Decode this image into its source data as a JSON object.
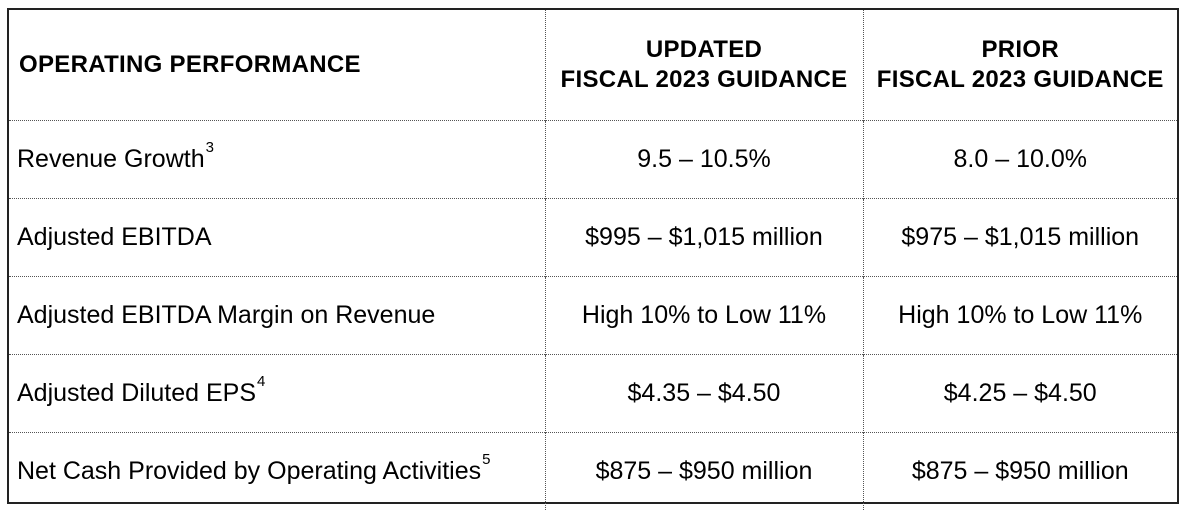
{
  "header": {
    "col1": "OPERATING PERFORMANCE",
    "col2_line1": "UPDATED",
    "col2_line2": "FISCAL 2023 GUIDANCE",
    "col3_line1": "PRIOR",
    "col3_line2": "FISCAL 2023 GUIDANCE"
  },
  "rows": [
    {
      "label": "Revenue Growth",
      "sup": "3",
      "updated": "9.5 – 10.5%",
      "prior": "8.0 – 10.0%"
    },
    {
      "label": "Adjusted EBITDA",
      "sup": "",
      "updated": "$995 – $1,015 million",
      "prior": "$975 – $1,015 million"
    },
    {
      "label": "Adjusted EBITDA Margin on Revenue",
      "sup": "",
      "updated": "High 10% to Low 11%",
      "prior": "High 10% to Low 11%"
    },
    {
      "label": "Adjusted Diluted EPS",
      "sup": "4",
      "updated": "$4.35 – $4.50",
      "prior": "$4.25 – $4.50"
    },
    {
      "label": "Net Cash Provided by Operating Activities",
      "sup": "5",
      "updated": "$875 – $950 million",
      "prior": "$875 – $950 million"
    }
  ]
}
